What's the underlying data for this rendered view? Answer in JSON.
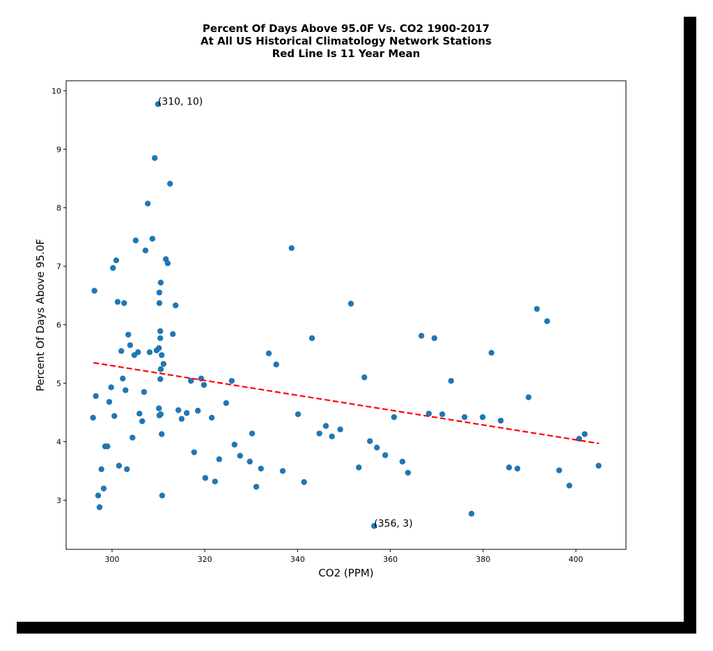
{
  "chart_data": {
    "type": "scatter",
    "title": [
      "Percent Of Days Above 95.0F Vs. CO2 1900-2017",
      "At All US Historical Climatology Network Stations",
      "Red Line Is 11 Year Mean"
    ],
    "x_label": "CO2 (PPM)",
    "y_label": "Percent Of Days Above 95.0F",
    "color": "#1f77b4",
    "x": [
      295.9,
      296.2,
      296.5,
      297.0,
      297.3,
      297.7,
      298.2,
      298.5,
      299.0,
      299.4,
      299.8,
      300.2,
      300.5,
      300.9,
      301.2,
      301.5,
      302.0,
      302.3,
      302.6,
      302.9,
      303.2,
      303.5,
      303.9,
      304.4,
      304.8,
      305.1,
      305.6,
      305.9,
      306.5,
      306.9,
      307.2,
      307.7,
      308.1,
      308.7,
      309.2,
      309.6,
      309.9,
      310.1,
      310.1,
      310.2,
      310.2,
      310.2,
      310.4,
      310.4,
      310.4,
      310.5,
      310.5,
      310.5,
      310.7,
      310.7,
      310.8,
      311.1,
      311.6,
      312.0,
      312.5,
      313.1,
      313.7,
      314.3,
      315.0,
      316.1,
      317.0,
      317.7,
      318.5,
      319.2,
      319.8,
      320.1,
      321.5,
      322.2,
      323.1,
      324.6,
      325.8,
      326.4,
      327.6,
      329.7,
      330.2,
      331.1,
      332.1,
      333.8,
      335.4,
      336.8,
      338.7,
      340.1,
      341.4,
      343.1,
      344.7,
      346.1,
      347.4,
      349.2,
      351.5,
      353.2,
      354.4,
      355.6,
      356.5,
      357.1,
      358.9,
      360.8,
      362.6,
      363.8,
      366.7,
      368.3,
      369.5,
      371.2,
      373.1,
      376.0,
      377.5,
      379.9,
      381.8,
      383.8,
      385.6,
      387.4,
      389.8,
      391.6,
      393.8,
      396.4,
      398.6,
      400.7,
      401.9,
      404.9
    ],
    "values": [
      4.41,
      6.58,
      4.78,
      3.08,
      2.88,
      3.53,
      3.2,
      3.92,
      3.92,
      4.68,
      4.93,
      6.97,
      4.44,
      7.1,
      6.39,
      3.59,
      5.55,
      5.08,
      6.37,
      4.88,
      3.53,
      5.83,
      5.65,
      4.07,
      5.48,
      7.44,
      5.53,
      4.48,
      4.35,
      4.85,
      7.27,
      8.07,
      5.53,
      7.47,
      8.85,
      5.56,
      9.77,
      5.6,
      4.57,
      6.37,
      6.55,
      4.45,
      5.89,
      5.77,
      5.07,
      6.72,
      4.47,
      5.24,
      5.48,
      4.13,
      3.08,
      5.33,
      7.12,
      7.05,
      8.41,
      5.84,
      6.33,
      4.54,
      4.39,
      4.49,
      5.04,
      3.82,
      4.53,
      5.08,
      4.97,
      3.38,
      4.41,
      3.32,
      3.7,
      4.66,
      5.04,
      3.95,
      3.76,
      3.66,
      4.14,
      3.23,
      3.54,
      5.51,
      5.32,
      3.5,
      7.31,
      4.47,
      3.31,
      5.77,
      4.14,
      4.27,
      4.09,
      4.21,
      6.36,
      3.56,
      5.1,
      4.01,
      2.56,
      3.9,
      3.77,
      4.42,
      3.66,
      3.47,
      5.81,
      4.48,
      5.77,
      4.47,
      5.04,
      4.42,
      2.77,
      4.42,
      5.52,
      4.36,
      3.56,
      3.54,
      4.76,
      6.27,
      6.06,
      3.51,
      3.25,
      4.05,
      4.13,
      3.59
    ],
    "trend": {
      "x": [
        296,
        405
      ],
      "values": [
        5.35,
        3.97
      ],
      "color": "#ff0000"
    },
    "annotations": [
      {
        "text": "(310, 10)",
        "x": 309.9,
        "y": 9.77
      },
      {
        "text": "(356, 3)",
        "x": 356.5,
        "y": 2.56
      }
    ],
    "xlim": [
      290.1,
      410.8
    ],
    "ylim": [
      2.16,
      10.17
    ],
    "xticks": [
      300,
      320,
      340,
      360,
      380,
      400
    ],
    "yticks": [
      3,
      4,
      5,
      6,
      7,
      8,
      9,
      10
    ]
  }
}
